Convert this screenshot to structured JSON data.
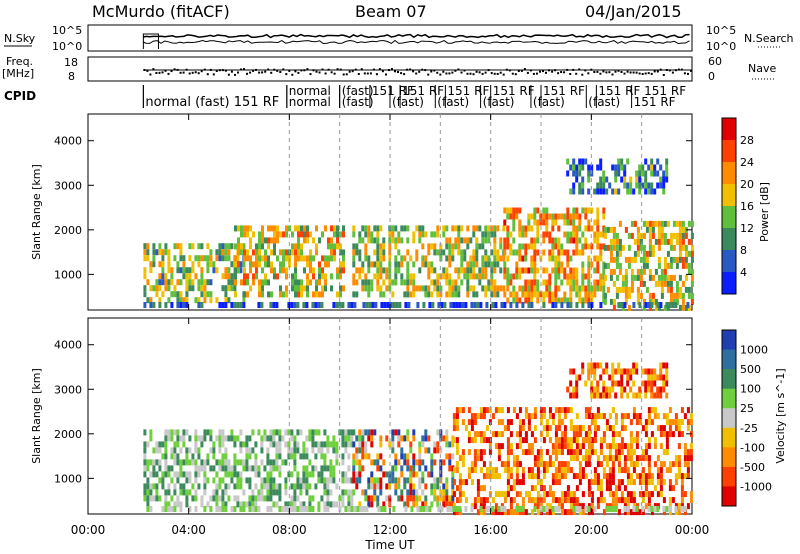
{
  "header": {
    "station": "McMurdo (fitACF)",
    "beam": "Beam 07",
    "date": "04/Jan/2015"
  },
  "top_panels": {
    "nsky_label": "N.Sky",
    "nsearch_label": "N.Search",
    "nsky_ticks": [
      "10^5",
      "10^0"
    ],
    "nsearch_ticks": [
      "10^5",
      "10^0"
    ],
    "freq_label": "Freq.",
    "freq_unit": "[MHz]",
    "freq_ticks": [
      "18",
      "8"
    ],
    "nave_label": "Nave",
    "nave_ticks": [
      "60",
      "0"
    ],
    "cpid_label": "CPID",
    "cpid_segments": [
      {
        "text": "normal (fast) 151 RF",
        "row": 1
      },
      {
        "text": "normal",
        "row": 0
      },
      {
        "text": "normal",
        "row": 1
      },
      {
        "text": "(fast)",
        "row": 0
      },
      {
        "text": "(fast)",
        "row": 1
      },
      {
        "text": "151 RF",
        "row": 0
      },
      {
        "text": "(fast)",
        "row": 1
      },
      {
        "text": "151 RF",
        "row": 0
      },
      {
        "text": "(fast)",
        "row": 1
      },
      {
        "text": "151 RF",
        "row": 0
      },
      {
        "text": "(fast)",
        "row": 1
      },
      {
        "text": "151 RF",
        "row": 0
      },
      {
        "text": "(fast)",
        "row": 1
      },
      {
        "text": "151 RF",
        "row": 0
      },
      {
        "text": "(fast)",
        "row": 1
      },
      {
        "text": "151 RF 151 RF",
        "row": 0
      },
      {
        "text": "151 RF",
        "row": 1
      }
    ]
  },
  "chart_data": [
    {
      "type": "heatmap",
      "name": "power",
      "ylabel": "Slant Range [km]",
      "y_ticks": [
        "1000",
        "2000",
        "3000",
        "4000"
      ],
      "ylim": [
        200,
        4600
      ],
      "xlim": [
        0,
        24
      ],
      "colorbar_label": "Power [dB]",
      "colorbar_ticks": [
        "4",
        "8",
        "12",
        "16",
        "20",
        "24",
        "28"
      ],
      "colorbar_colors": [
        "#0a1eff",
        "#2b59c3",
        "#3c8a5c",
        "#5fbf3c",
        "#f0c000",
        "#ff8c00",
        "#ff4000",
        "#e00000"
      ],
      "echo_regions": [
        {
          "t0": 2.2,
          "t1": 6.2,
          "r0": 400,
          "r1": 1700,
          "level": 0.45
        },
        {
          "t0": 5.8,
          "t1": 10.2,
          "r0": 600,
          "r1": 2100,
          "level": 0.55
        },
        {
          "t0": 10.5,
          "t1": 16.5,
          "r0": 500,
          "r1": 2100,
          "level": 0.5
        },
        {
          "t0": 16.5,
          "t1": 20.5,
          "r0": 400,
          "r1": 2500,
          "level": 0.65
        },
        {
          "t0": 20.5,
          "t1": 24.0,
          "r0": 300,
          "r1": 2200,
          "level": 0.55
        },
        {
          "t0": 19.0,
          "t1": 23.0,
          "r0": 2800,
          "r1": 3600,
          "level": 0.25
        }
      ]
    },
    {
      "type": "heatmap",
      "name": "velocity",
      "ylabel": "Slant Range [km]",
      "y_ticks": [
        "1000",
        "2000",
        "3000",
        "4000"
      ],
      "ylim": [
        200,
        4600
      ],
      "xlim": [
        0,
        24
      ],
      "xlabel": "Time UT",
      "x_ticks": [
        "00:00",
        "04:00",
        "08:00",
        "12:00",
        "16:00",
        "20:00",
        "00:00"
      ],
      "colorbar_label": "Velocity [m s^-1]",
      "colorbar_ticks": [
        "1000",
        "500",
        "100",
        "25",
        "-25",
        "-100",
        "-500",
        "-1000"
      ],
      "colorbar_colors": [
        "#1f3fb0",
        "#2f6fa0",
        "#3c8a5c",
        "#6fcf3c",
        "#c8c8c8",
        "#f0c000",
        "#ff8c00",
        "#ff4000",
        "#e00000"
      ],
      "echo_regions": [
        {
          "t0": 2.2,
          "t1": 10.5,
          "r0": 400,
          "r1": 2100,
          "sign": "positive"
        },
        {
          "t0": 10.5,
          "t1": 14.5,
          "r0": 400,
          "r1": 2100,
          "sign": "mixed"
        },
        {
          "t0": 14.5,
          "t1": 24.0,
          "r0": 300,
          "r1": 2600,
          "sign": "negative"
        },
        {
          "t0": 19.0,
          "t1": 23.0,
          "r0": 2800,
          "r1": 3600,
          "sign": "negative"
        }
      ]
    }
  ]
}
